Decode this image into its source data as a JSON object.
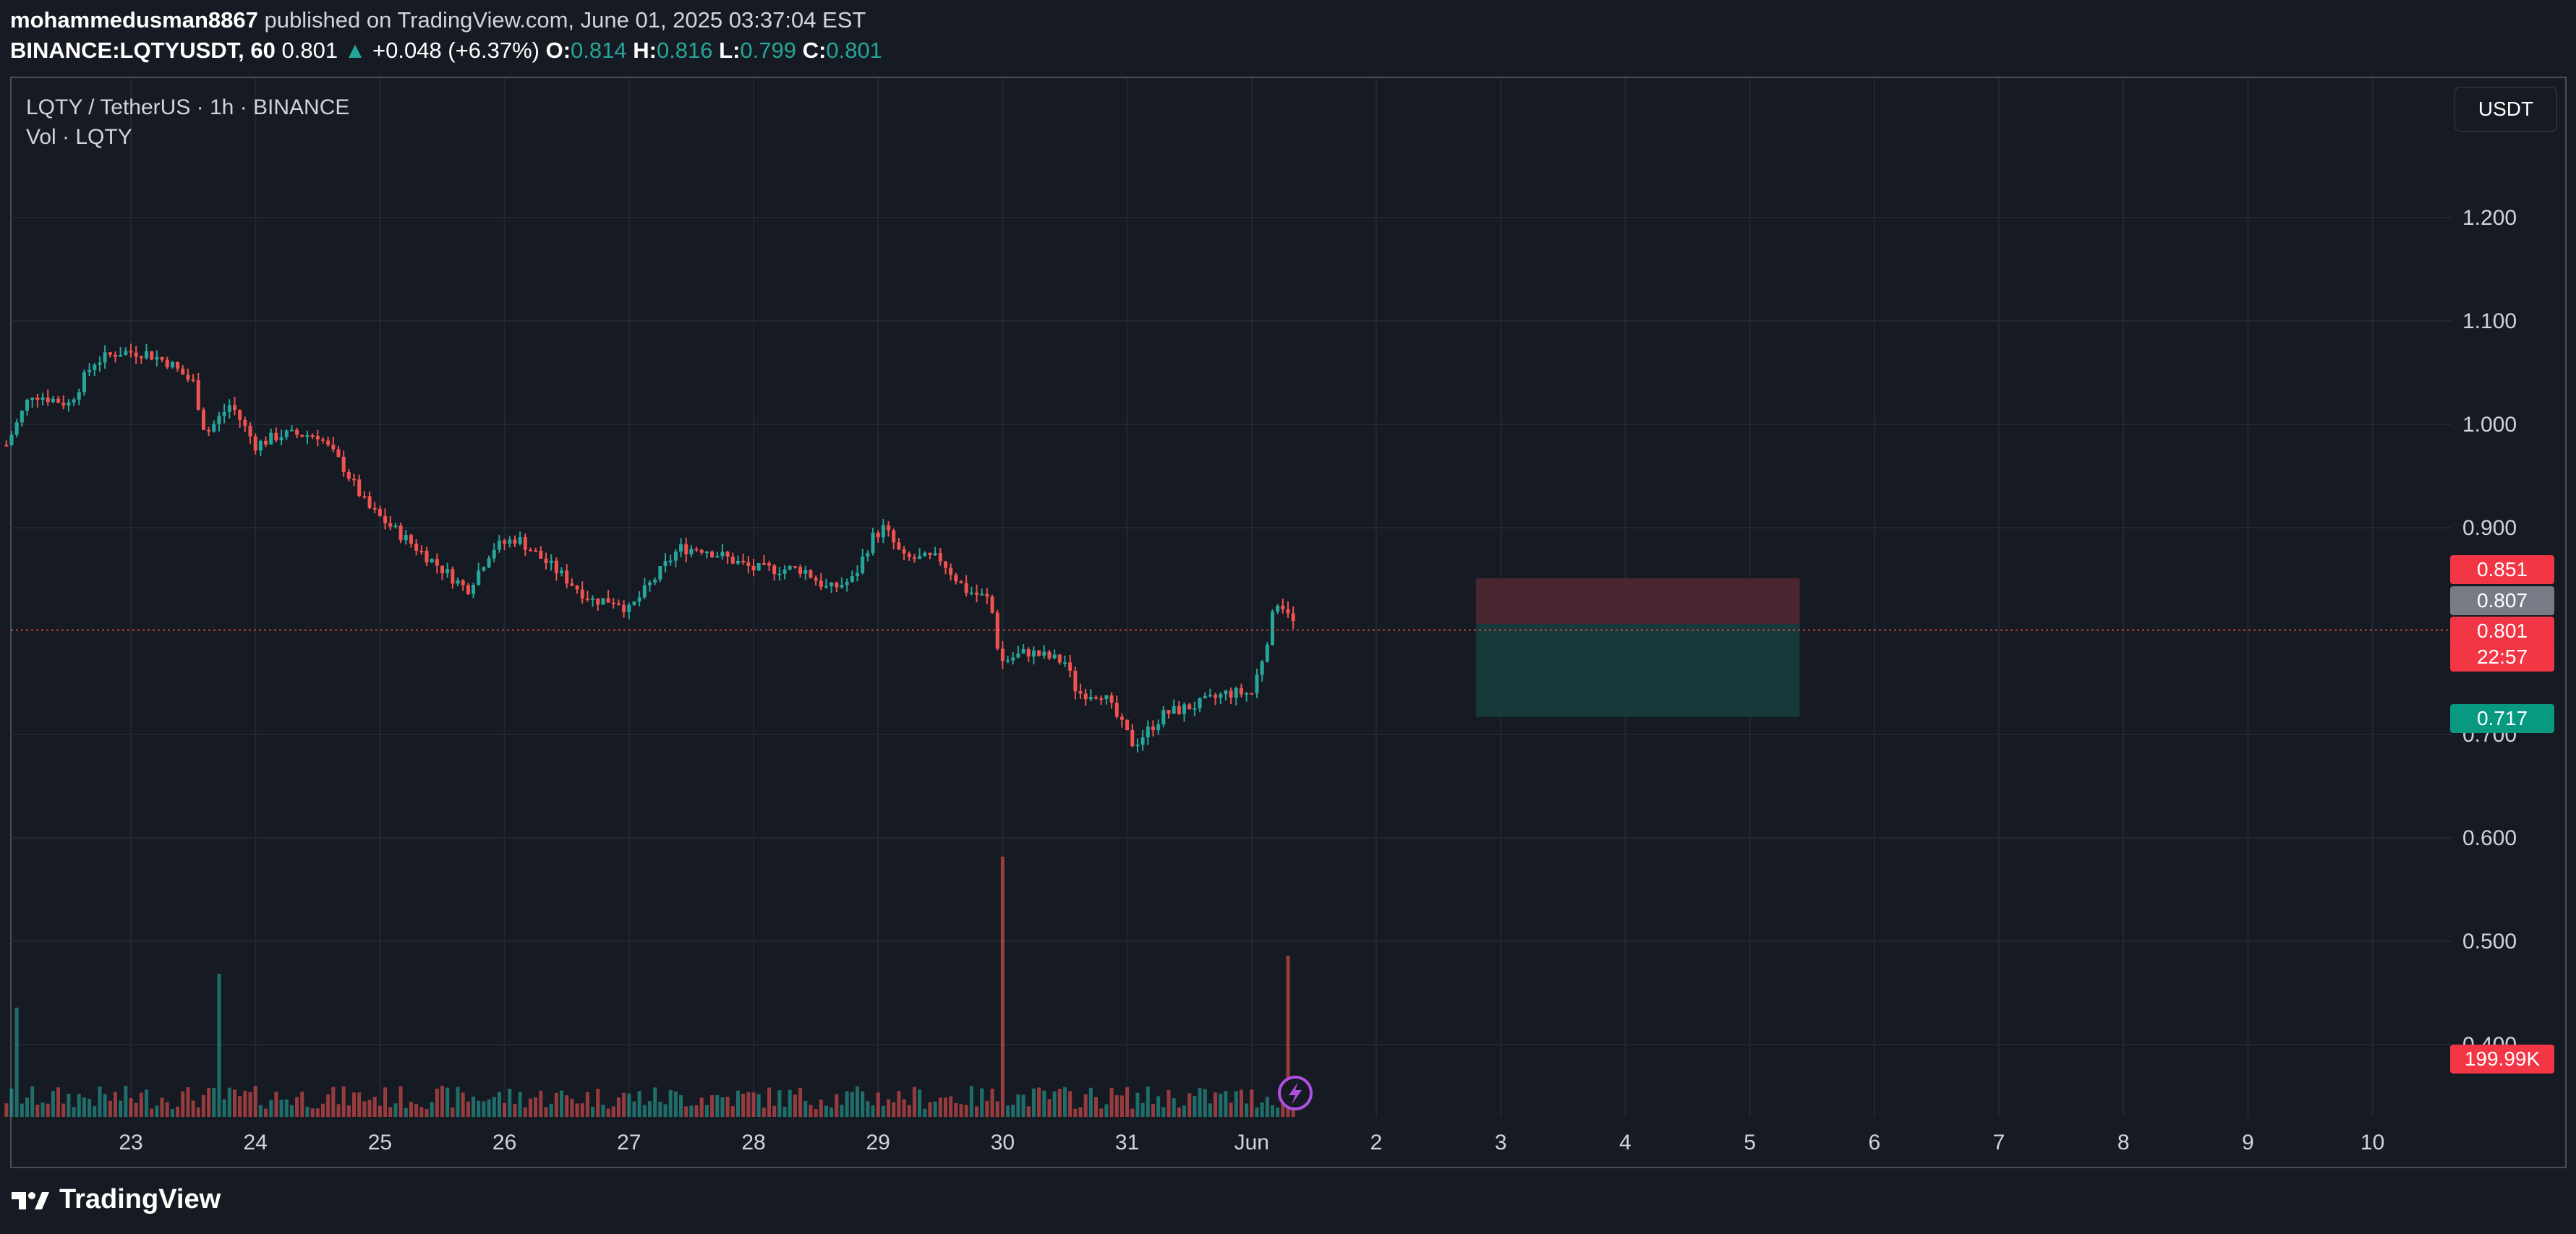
{
  "header": {
    "author": "mohammedusman8867",
    "published_text": "published on TradingView.com, June 01, 2025 03:37:04 EST",
    "symbol": "BINANCE:LQTYUSDT, 60",
    "last": "0.801",
    "change": "+0.048 (+6.37%)",
    "o_label": "O:",
    "o": "0.814",
    "h_label": "H:",
    "h": "0.816",
    "l_label": "L:",
    "l": "0.799",
    "c_label": "C:",
    "c": "0.801"
  },
  "legend": {
    "title": "LQTY / TetherUS · 1h · BINANCE",
    "volume": "Vol · LQTY"
  },
  "currency_button": "USDT",
  "footer": {
    "logo_text": "TradingView"
  },
  "colors": {
    "up": "#26a69a",
    "down": "#ef5350",
    "background": "#161a23",
    "stop_zone": "#4a2730",
    "target_zone": "#17393a",
    "grid": "#232733"
  },
  "price_labels": {
    "stop": "0.851",
    "entry": "0.807",
    "last": "0.801",
    "countdown": "22:57",
    "target": "0.717",
    "volume": "199.99K"
  },
  "chart_data": {
    "type": "candlestick",
    "interval": "1h",
    "ylim": [
      0.34,
      1.28
    ],
    "y_ticks": [
      "1.200",
      "1.100",
      "1.000",
      "0.900",
      "0.700",
      "0.600",
      "0.500",
      "0.400"
    ],
    "x_ticks": [
      "23",
      "24",
      "25",
      "26",
      "27",
      "28",
      "29",
      "30",
      "31",
      "Jun",
      "2",
      "3",
      "4",
      "5",
      "6",
      "7",
      "8",
      "9",
      "10"
    ],
    "price_path": [
      [
        22.0,
        0.98
      ],
      [
        22.2,
        1.03
      ],
      [
        22.5,
        1.02
      ],
      [
        22.7,
        1.06
      ],
      [
        22.9,
        1.07
      ],
      [
        23.1,
        1.07
      ],
      [
        23.3,
        1.06
      ],
      [
        23.5,
        1.04
      ],
      [
        23.6,
        0.99
      ],
      [
        23.8,
        1.02
      ],
      [
        24.0,
        0.98
      ],
      [
        24.2,
        0.99
      ],
      [
        24.5,
        0.99
      ],
      [
        24.7,
        0.96
      ],
      [
        24.9,
        0.92
      ],
      [
        25.1,
        0.9
      ],
      [
        25.4,
        0.87
      ],
      [
        25.6,
        0.85
      ],
      [
        25.7,
        0.84
      ],
      [
        25.9,
        0.88
      ],
      [
        26.1,
        0.89
      ],
      [
        26.3,
        0.87
      ],
      [
        26.5,
        0.85
      ],
      [
        26.7,
        0.83
      ],
      [
        26.9,
        0.83
      ],
      [
        27.0,
        0.82
      ],
      [
        27.2,
        0.85
      ],
      [
        27.4,
        0.88
      ],
      [
        27.6,
        0.88
      ],
      [
        27.8,
        0.87
      ],
      [
        28.0,
        0.86
      ],
      [
        28.2,
        0.86
      ],
      [
        28.4,
        0.86
      ],
      [
        28.6,
        0.84
      ],
      [
        28.8,
        0.85
      ],
      [
        28.95,
        0.89
      ],
      [
        29.05,
        0.9
      ],
      [
        29.2,
        0.87
      ],
      [
        29.5,
        0.87
      ],
      [
        29.7,
        0.84
      ],
      [
        29.9,
        0.83
      ],
      [
        29.98,
        0.77
      ],
      [
        30.2,
        0.78
      ],
      [
        30.5,
        0.77
      ],
      [
        30.6,
        0.74
      ],
      [
        30.8,
        0.74
      ],
      [
        30.95,
        0.71
      ],
      [
        31.05,
        0.69
      ],
      [
        31.3,
        0.72
      ],
      [
        31.6,
        0.73
      ],
      [
        31.8,
        0.74
      ],
      [
        32.0,
        0.74
      ],
      [
        32.1,
        0.78
      ],
      [
        32.2,
        0.83
      ],
      [
        32.3,
        0.82
      ],
      [
        32.35,
        0.801
      ]
    ],
    "volume_spikes": [
      {
        "x": 30.0,
        "rel": 1.0
      },
      {
        "x": 32.3,
        "rel": 0.62
      },
      {
        "x": 23.7,
        "rel": 0.55
      },
      {
        "x": 22.1,
        "rel": 0.42
      }
    ],
    "position": {
      "x_range": [
        33.8,
        36.4
      ],
      "stop": 0.851,
      "entry": 0.807,
      "target": 0.717
    },
    "last_price": 0.801
  }
}
